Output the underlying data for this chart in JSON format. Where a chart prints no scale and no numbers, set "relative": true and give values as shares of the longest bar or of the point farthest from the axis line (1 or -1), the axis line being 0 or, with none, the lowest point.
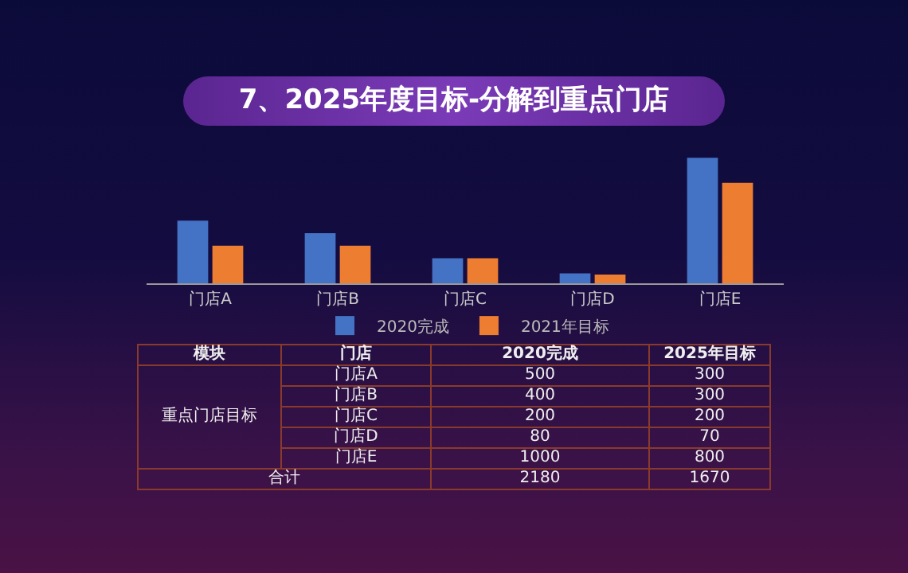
{
  "chart_data": [
    {
      "type": "bar",
      "title": "7、2025年度目标-分解到重点门店",
      "categories": [
        "门店A",
        "门店B",
        "门店C",
        "门店D",
        "门店E"
      ],
      "relative": true,
      "series": [
        {
          "name": "2020完成",
          "color": "#4472c4",
          "values": [
            0.5,
            0.4,
            0.2,
            0.08,
            1
          ]
        },
        {
          "name": "2021年目标",
          "color": "#ed7d31",
          "values": [
            0.3,
            0.3,
            0.2,
            0.07,
            0.8
          ]
        }
      ],
      "legend": "bottom"
    },
    {
      "type": "other",
      "annotations": [
        "模块",
        "门店",
        "重点门店目标",
        "合计"
      ],
      "categories": [
        "门店A",
        "门店B",
        "门店C",
        "门店D",
        "门店E"
      ],
      "series": [
        {
          "name": "2020完成",
          "values": [
            500,
            400,
            200,
            80,
            1000
          ]
        },
        {
          "name": "2025年目标",
          "values": [
            300,
            300,
            200,
            70,
            800
          ]
        }
      ],
      "data_labels": true,
      "totals": [
        "2180",
        "1670"
      ]
    }
  ]
}
